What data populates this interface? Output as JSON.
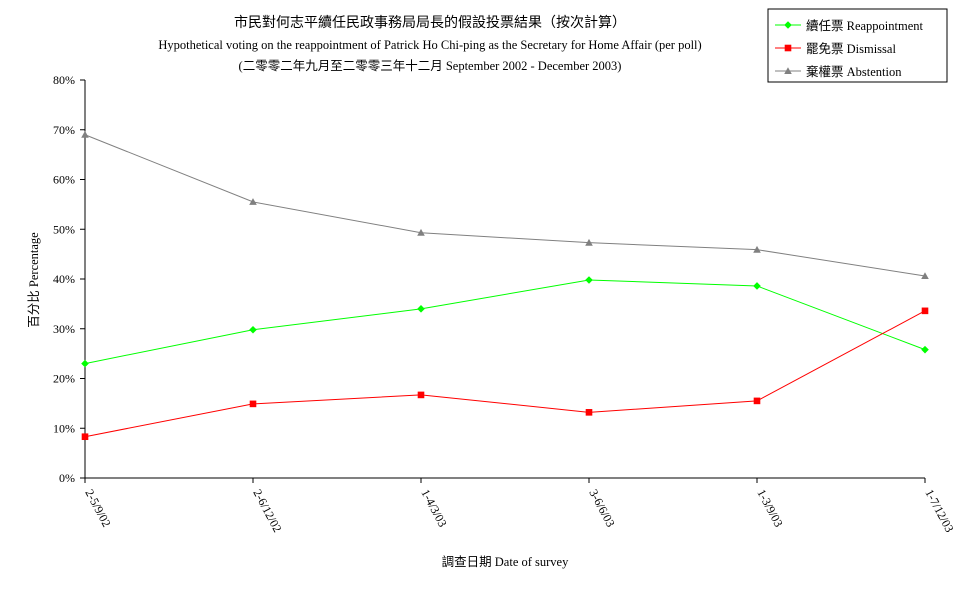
{
  "chart_data": {
    "type": "line",
    "title": "市民對何志平續任民政事務局局長的假設投票結果（按次計算）",
    "subtitle": "Hypothetical voting on the reappointment of Patrick Ho Chi-ping as the Secretary for Home Affair (per poll)",
    "subtitle2": "(二零零二年九月至二零零三年十二月 September 2002 - December 2003)",
    "xlabel": "調查日期 Date of survey",
    "ylabel": "百分比 Percentage",
    "categories": [
      "2-5/9/02",
      "2-6/12/02",
      "1-4/3/03",
      "3-6/6/03",
      "1-3/9/03",
      "1-7/12/03"
    ],
    "ylim": [
      0,
      80
    ],
    "yticks": [
      "0%",
      "10%",
      "20%",
      "30%",
      "40%",
      "50%",
      "60%",
      "70%",
      "80%"
    ],
    "legend_position": "top-right",
    "grid": false,
    "series": [
      {
        "name": "續任票 Reappointment",
        "color": "#00ff00",
        "marker": "diamond",
        "values": [
          23.0,
          29.8,
          34.0,
          39.8,
          38.6,
          25.8
        ]
      },
      {
        "name": "罷免票 Dismissal",
        "color": "#ff0000",
        "marker": "square",
        "values": [
          8.3,
          14.9,
          16.7,
          13.2,
          15.5,
          33.6
        ]
      },
      {
        "name": "棄權票 Abstention",
        "color": "#808080",
        "marker": "triangle",
        "values": [
          69.0,
          55.5,
          49.3,
          47.3,
          45.9,
          40.6
        ]
      }
    ]
  }
}
